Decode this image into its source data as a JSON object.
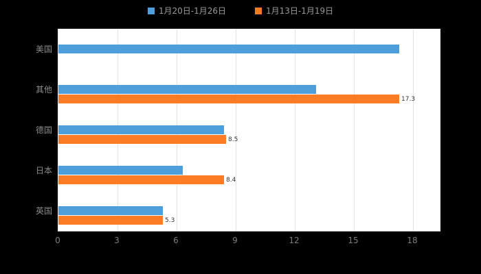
{
  "legend": {
    "items": [
      {
        "label": "1月20日-1月26日",
        "color": "#4d9ed9"
      },
      {
        "label": "1月13日-1月19日",
        "color": "#fb7c25"
      }
    ]
  },
  "chart_data": {
    "type": "bar",
    "orientation": "horizontal",
    "title": "",
    "xlabel": "",
    "ylabel": "",
    "categories": [
      "美国",
      "其他",
      "德国",
      "日本",
      "英国"
    ],
    "series": [
      {
        "name": "1月20日-1月26日",
        "color": "#4d9ed9",
        "values": [
          17.3,
          13.1,
          8.4,
          6.3,
          5.3
        ]
      },
      {
        "name": "1月13日-1月19日",
        "color": "#fb7c25",
        "values": [
          null,
          17.3,
          8.5,
          8.4,
          5.3
        ]
      }
    ],
    "value_labels": {
      "series": "1月13日-1月19日",
      "values": [
        null,
        "17.3",
        "8.5",
        "8.4",
        "5.3"
      ]
    },
    "xticks": [
      "0",
      "3",
      "6",
      "9",
      "12",
      "15",
      "18"
    ],
    "xtick_values": [
      0,
      3,
      6,
      9,
      12,
      15,
      18
    ],
    "xlim": [
      0,
      19.4
    ],
    "grid": true,
    "legend_position": "top",
    "background": "#000000",
    "plot_background": "#ffffff"
  }
}
